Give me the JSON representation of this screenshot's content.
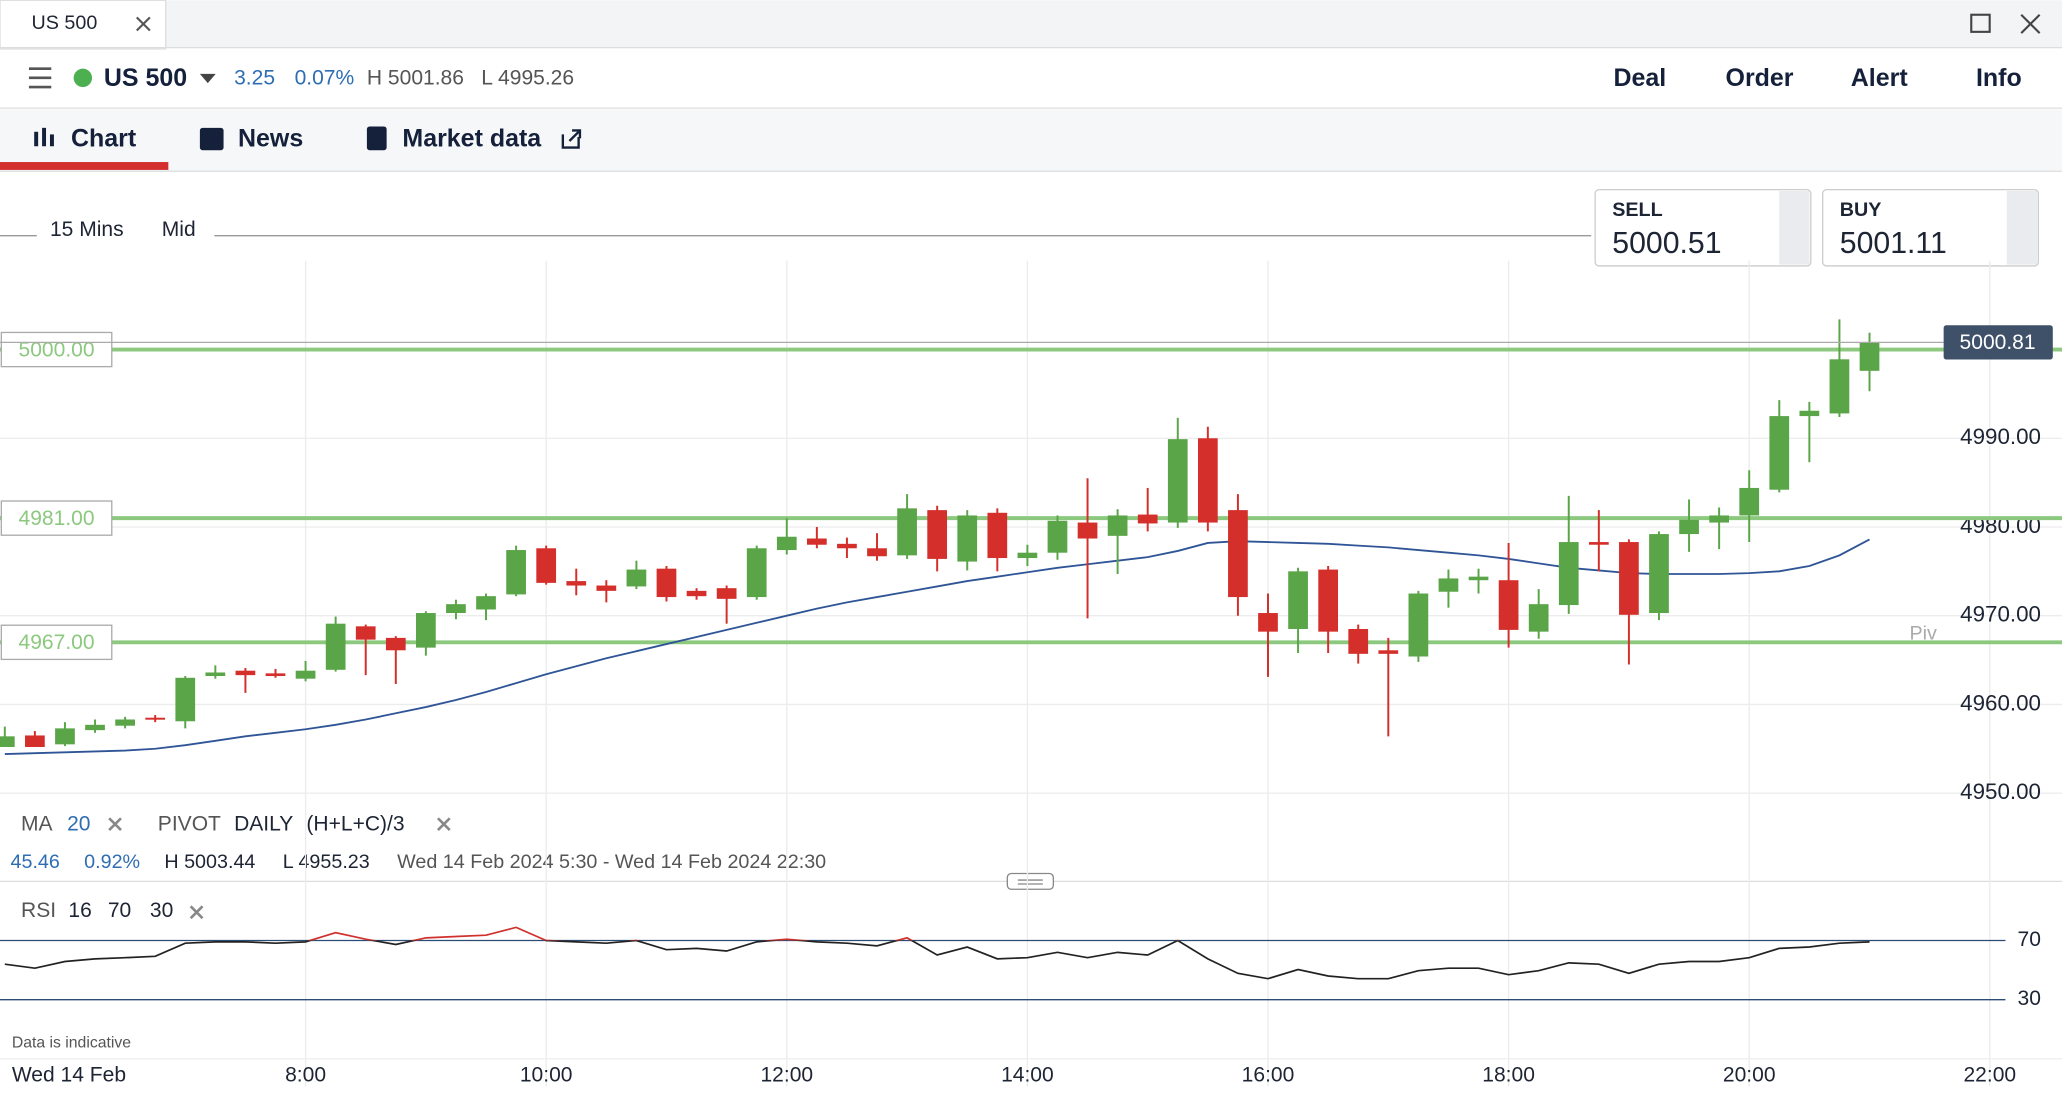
{
  "window_tab": {
    "title": "US 500"
  },
  "header": {
    "instrument": "US 500",
    "change": "3.25",
    "change_pct": "0.07%",
    "high": "H 5001.86",
    "low": "L 4995.26",
    "actions": [
      "Deal",
      "Order",
      "Alert",
      "Info"
    ]
  },
  "tabs": [
    "Chart",
    "News",
    "Market data"
  ],
  "toolbar": {
    "interval": "15 Mins",
    "price_type": "Mid"
  },
  "quotes": {
    "sell": {
      "label": "SELL",
      "price": "5000.51"
    },
    "buy": {
      "label": "BUY",
      "price": "5001.11"
    }
  },
  "indicators": {
    "ma": {
      "label": "MA",
      "period": "20"
    },
    "pivot": {
      "label": "PIVOT",
      "period": "DAILY",
      "formula": "(H+L+C)/3"
    }
  },
  "stats": {
    "change": "45.46",
    "change_pct": "0.92%",
    "high": "H 5003.44",
    "low": "L 4955.23",
    "range": "Wed 14 Feb 2024 5:30 - Wed 14 Feb 2024 22:30"
  },
  "rsi_settings": {
    "label": "RSI",
    "params": [
      "16",
      "70",
      "30"
    ]
  },
  "footer_note": "Data is indicative",
  "chart_data": [
    {
      "type": "candlestick",
      "x": [
        5.5,
        5.75,
        6,
        6.25,
        6.5,
        6.75,
        7,
        7.25,
        7.5,
        7.75,
        8,
        8.25,
        8.5,
        8.75,
        9,
        9.25,
        9.5,
        9.75,
        10,
        10.25,
        10.5,
        10.75,
        11,
        11.25,
        11.5,
        11.75,
        12,
        12.25,
        12.5,
        12.75,
        13,
        13.25,
        13.5,
        13.75,
        14,
        14.25,
        14.5,
        14.75,
        15,
        15.25,
        15.5,
        15.75,
        16,
        16.25,
        16.5,
        16.75,
        17,
        17.25,
        17.5,
        17.75,
        18,
        18.25,
        18.5,
        18.75,
        19,
        19.25,
        19.5,
        19.75,
        20,
        20.25,
        20.5,
        20.75,
        21
      ],
      "open": [
        4955.2,
        4956.5,
        4955.5,
        4957.1,
        4957.6,
        4958.5,
        4958.1,
        4963.2,
        4963.8,
        4963.5,
        4962.9,
        4963.9,
        4968.8,
        4967.5,
        4966.4,
        4970.3,
        4970.7,
        4972.4,
        4977.6,
        4973.9,
        4973.4,
        4973.3,
        4975.3,
        4972.8,
        4973.1,
        4972.1,
        4977.4,
        4978.7,
        4978.1,
        4977.6,
        4976.8,
        4981.9,
        4976.1,
        4981.6,
        4976.5,
        4977.1,
        4980.5,
        4979.0,
        4981.4,
        4980.5,
        4990.0,
        4981.9,
        4970.3,
        4968.5,
        4975.2,
        4968.5,
        4966.1,
        4965.4,
        4972.7,
        4974.0,
        4974.0,
        4968.2,
        4971.2,
        4978.3,
        4978.3,
        4970.3,
        4979.2,
        4980.5,
        4981.3,
        4984.2,
        4992.5,
        4992.8,
        4997.6
      ],
      "high": [
        4957.5,
        4957,
        4958,
        4958.3,
        4958.6,
        4958.8,
        4963.2,
        4964.4,
        4964.1,
        4964,
        4964.9,
        4969.9,
        4969,
        4967.7,
        4970.5,
        4971.8,
        4972.5,
        4977.9,
        4977.9,
        4975.3,
        4974,
        4976.2,
        4975.6,
        4973.1,
        4973.4,
        4977.9,
        4981,
        4980,
        4978.8,
        4979.3,
        4983.7,
        4982.4,
        4981.9,
        4982.1,
        4978,
        4981.3,
        4985.5,
        4982.0,
        4984.4,
        4992.3,
        4991.3,
        4983.7,
        4972.5,
        4975.4,
        4975.6,
        4969.0,
        4967.5,
        4972.8,
        4975.2,
        4975.3,
        4978.2,
        4973.0,
        4983.5,
        4981.9,
        4978.6,
        4979.5,
        4983.1,
        4982.2,
        4986.4,
        4994.3,
        4994.1,
        5003.4,
        5001.9
      ],
      "low": [
        4955.2,
        4955.3,
        4955.3,
        4956.8,
        4957.3,
        4958,
        4957.3,
        4962.9,
        4961.3,
        4963,
        4962.6,
        4963.7,
        4963.3,
        4962.3,
        4965.5,
        4969.6,
        4969.5,
        4972.2,
        4973.5,
        4972.3,
        4971.5,
        4973,
        4971.6,
        4971.8,
        4969.1,
        4971.8,
        4976.9,
        4977.6,
        4976.5,
        4976.2,
        4976.4,
        4975.0,
        4975.1,
        4975.0,
        4975.6,
        4976.3,
        4969.7,
        4974.7,
        4979.5,
        4979.9,
        4979.5,
        4970.0,
        4963.1,
        4965.8,
        4965.8,
        4964.6,
        4956.4,
        4964.8,
        4970.9,
        4972.5,
        4966.4,
        4967.4,
        4970.2,
        4975.0,
        4964.5,
        4969.5,
        4977.2,
        4977.5,
        4978.3,
        4983.9,
        4987.3,
        4992.4,
        4995.3
      ],
      "close": [
        4956.4,
        4955.2,
        4957.3,
        4957.7,
        4958.3,
        4958.4,
        4963.0,
        4963.6,
        4963.3,
        4963.2,
        4963.8,
        4969.1,
        4967.3,
        4966.1,
        4970.3,
        4971.3,
        4972.2,
        4977.4,
        4973.7,
        4973.4,
        4972.8,
        4975.2,
        4972.1,
        4972.2,
        4971.9,
        4977.6,
        4978.9,
        4978.0,
        4977.6,
        4976.7,
        4982.1,
        4976.4,
        4981.3,
        4976.5,
        4977.1,
        4980.7,
        4978.7,
        4981.3,
        4980.4,
        4989.9,
        4980.5,
        4972.1,
        4968.2,
        4975.0,
        4968.2,
        4965.7,
        4965.7,
        4972.5,
        4974.2,
        4974.4,
        4968.4,
        4971.3,
        4978.3,
        4978.0,
        4970.1,
        4979.2,
        4980.8,
        4981.3,
        4984.4,
        4992.5,
        4993.1,
        4998.9,
        5000.8
      ],
      "up_color": "#5aa548",
      "down_color": "#d42f2a",
      "ma_values": [
        4954.4,
        4954.5,
        4954.6,
        4954.7,
        4954.8,
        4955.0,
        4955.4,
        4955.9,
        4956.4,
        4956.8,
        4957.2,
        4957.7,
        4958.3,
        4959.0,
        4959.7,
        4960.5,
        4961.4,
        4962.4,
        4963.4,
        4964.3,
        4965.2,
        4966.0,
        4966.8,
        4967.6,
        4968.4,
        4969.2,
        4970.0,
        4970.8,
        4971.5,
        4972.1,
        4972.7,
        4973.3,
        4973.9,
        4974.4,
        4974.9,
        4975.4,
        4975.8,
        4976.2,
        4976.6,
        4977.3,
        4978.2,
        4978.4,
        4978.3,
        4978.2,
        4978.1,
        4977.9,
        4977.7,
        4977.4,
        4977.1,
        4976.8,
        4976.4,
        4975.9,
        4975.4,
        4975.1,
        4974.8,
        4974.7,
        4974.7,
        4974.7,
        4974.8,
        4975.0,
        4975.6,
        4976.8,
        4978.6
      ],
      "ma_color": "#2f5597",
      "xlim": [
        5.46,
        22.6
      ],
      "xticks": [
        {
          "value": 8,
          "label": "8:00"
        },
        {
          "value": 10,
          "label": "10:00"
        },
        {
          "value": 12,
          "label": "12:00"
        },
        {
          "value": 14,
          "label": "14:00"
        },
        {
          "value": 16,
          "label": "16:00"
        },
        {
          "value": 18,
          "label": "18:00"
        },
        {
          "value": 20,
          "label": "20:00"
        },
        {
          "value": 22,
          "label": "22:00"
        }
      ],
      "x_start_label": "Wed 14 Feb",
      "ylim": [
        4944.5,
        5020.1
      ],
      "yticks": [
        {
          "value": 4950,
          "label": "4950.00"
        },
        {
          "value": 4960,
          "label": "4960.00"
        },
        {
          "value": 4970,
          "label": "4970.00"
        },
        {
          "value": 4980,
          "label": "4980.00"
        },
        {
          "value": 4990,
          "label": "4990.00"
        }
      ],
      "grid": true,
      "levels": [
        {
          "value": 5000,
          "label": "5000.00"
        },
        {
          "value": 4981,
          "label": "4981.00"
        },
        {
          "value": 4967,
          "label": "4967.00"
        }
      ],
      "level_color": "#8cc97f",
      "level_name": "Piv",
      "last": {
        "value": 5000.81,
        "label": "5000.81"
      }
    },
    {
      "type": "line",
      "values": [
        54.0,
        51.3,
        55.8,
        57.6,
        58.4,
        59.3,
        68.2,
        69.1,
        69.1,
        68.2,
        69.1,
        75.3,
        70.9,
        67.3,
        71.8,
        72.7,
        73.6,
        78.9,
        70,
        69.1,
        68.2,
        70,
        63.8,
        64.7,
        62.9,
        69.1,
        70.9,
        69.1,
        68.2,
        66.4,
        71.8,
        60.2,
        65.6,
        57.6,
        58.4,
        62,
        58.4,
        62,
        60.2,
        70,
        57.6,
        47.8,
        44.2,
        50.4,
        46,
        44.2,
        44.2,
        49.6,
        51.3,
        51.3,
        46.9,
        49.6,
        54.9,
        54,
        47.8,
        54,
        55.8,
        55.8,
        58.4,
        64.7,
        65.6,
        68.2,
        69.1
      ],
      "color": "#222222",
      "overbought_color": "#d0312d",
      "ylim": [
        -5.6,
        101.1
      ],
      "yticks": [
        30,
        70
      ]
    }
  ]
}
